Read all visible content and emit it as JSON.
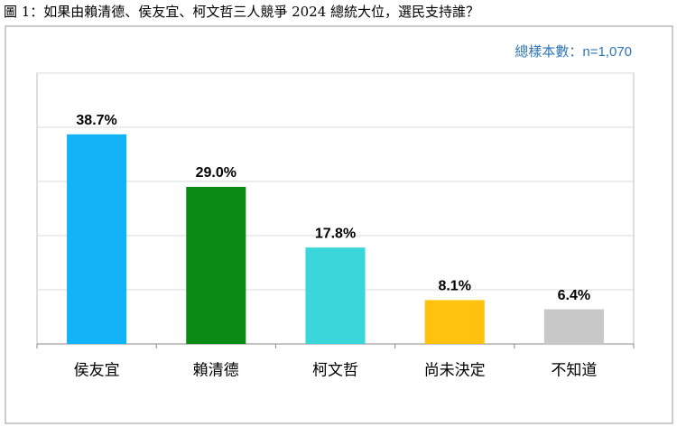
{
  "chart_data": {
    "type": "bar",
    "title": "圖 1：如果由賴清德、侯友宜、柯文哲三人競爭 2024 總統大位，選民支持誰？",
    "annotation": "總樣本數：n=1,070",
    "categories": [
      "侯友宜",
      "賴清德",
      "柯文哲",
      "尚未決定",
      "不知道"
    ],
    "values": [
      38.7,
      29.0,
      17.8,
      8.1,
      6.4
    ],
    "value_labels": [
      "38.7%",
      "29.0%",
      "17.8%",
      "8.1%",
      "6.4%"
    ],
    "colors": [
      "#12b4f7",
      "#0b8a16",
      "#3ad6d9",
      "#ffc20e",
      "#c8c8c8"
    ],
    "ylim": [
      0,
      50
    ],
    "yticks": [
      0,
      10,
      20,
      30,
      40,
      50
    ],
    "grid": true
  }
}
